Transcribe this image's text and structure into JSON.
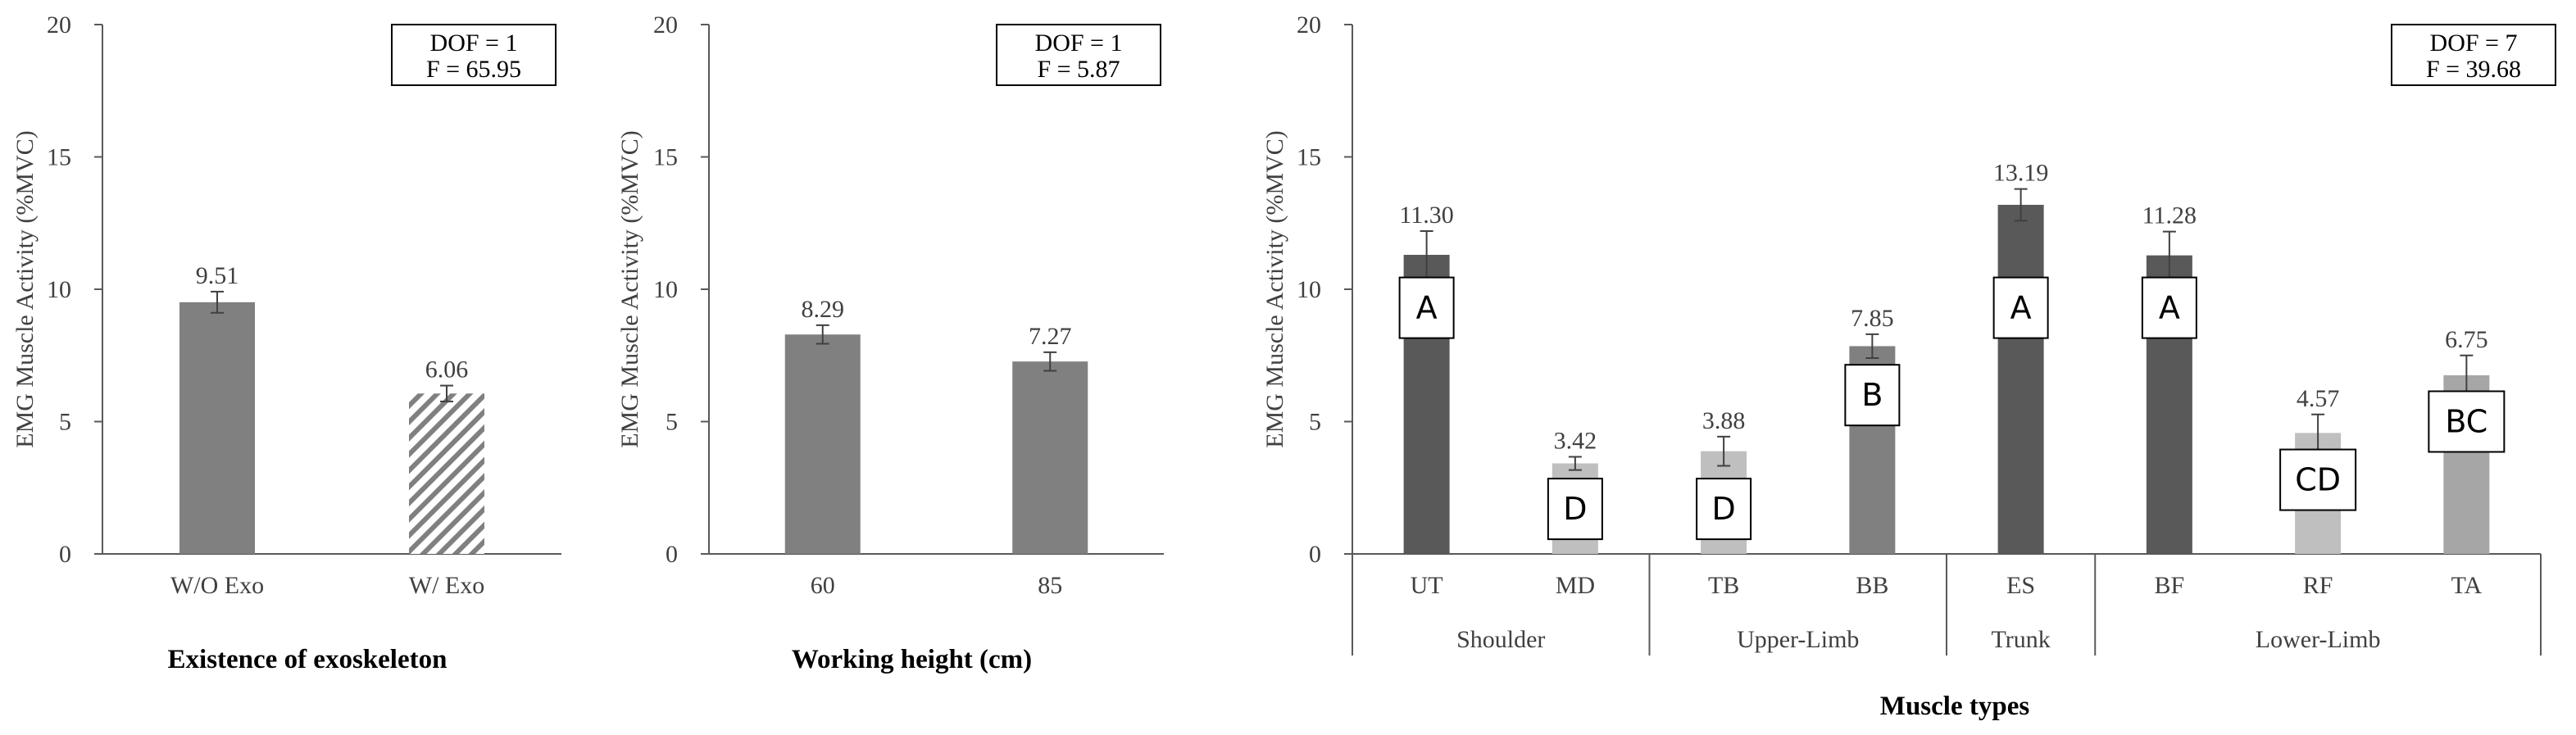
{
  "colors": {
    "axis": "#595959",
    "dark": "#595959",
    "medium": "#808080",
    "light": "#bfbfbf",
    "lighter": "#a6a6a6",
    "hatch": "#808080",
    "error": "#404040"
  },
  "chart_data": [
    {
      "type": "bar",
      "title": "",
      "xlabel": "Existence of exoskeleton",
      "ylabel": "EMG Muscle Activity  (%MVC)",
      "ylim": [
        0,
        20
      ],
      "yticks": [
        "0",
        "5",
        "10",
        "15",
        "20"
      ],
      "categories": [
        "W/O Exo",
        "W/ Exo"
      ],
      "values": [
        9.51,
        6.06
      ],
      "value_labels": [
        "9.51",
        "6.06"
      ],
      "errors": [
        0.4,
        0.3
      ],
      "fills": [
        "solid-medium",
        "hatch"
      ],
      "stat_box": [
        "DOF = 1",
        "F = 65.95"
      ]
    },
    {
      "type": "bar",
      "title": "",
      "xlabel": "Working height (cm)",
      "ylabel": "EMG Muscle Activity  (%MVC)",
      "ylim": [
        0,
        20
      ],
      "yticks": [
        "0",
        "5",
        "10",
        "15",
        "20"
      ],
      "categories": [
        "60",
        "85"
      ],
      "values": [
        8.29,
        7.27
      ],
      "value_labels": [
        "8.29",
        "7.27"
      ],
      "errors": [
        0.35,
        0.35
      ],
      "fills": [
        "solid-medium",
        "solid-medium"
      ],
      "stat_box": [
        "DOF = 1",
        "F = 5.87"
      ]
    },
    {
      "type": "bar",
      "title": "",
      "xlabel": "Muscle types",
      "ylabel": "EMG Muscle Activity  (%MVC)",
      "ylim": [
        0,
        20
      ],
      "yticks": [
        "0",
        "5",
        "10",
        "15",
        "20"
      ],
      "categories": [
        "UT",
        "MD",
        "TB",
        "BB",
        "ES",
        "BF",
        "RF",
        "TA"
      ],
      "values": [
        11.3,
        3.42,
        3.88,
        7.85,
        13.19,
        11.28,
        4.57,
        6.75
      ],
      "value_labels": [
        "11.30",
        "3.42",
        "3.88",
        "7.85",
        "13.19",
        "11.28",
        "4.57",
        "6.75"
      ],
      "errors": [
        0.9,
        0.25,
        0.55,
        0.45,
        0.6,
        0.9,
        0.7,
        0.75
      ],
      "fills": [
        "dark",
        "light",
        "light",
        "medium",
        "dark",
        "dark",
        "light",
        "lighter"
      ],
      "letters": [
        "A",
        "D",
        "D",
        "B",
        "A",
        "A",
        "CD",
        "BC"
      ],
      "letter_y": [
        9.3,
        1.7,
        1.7,
        6.0,
        9.3,
        9.3,
        2.8,
        5.0
      ],
      "groups": [
        {
          "label": "Shoulder",
          "start": 0,
          "end": 1
        },
        {
          "label": "Upper-Limb",
          "start": 2,
          "end": 3
        },
        {
          "label": "Trunk",
          "start": 4,
          "end": 4
        },
        {
          "label": "Lower-Limb",
          "start": 5,
          "end": 7
        }
      ],
      "stat_box": [
        "DOF = 7",
        "F = 39.68"
      ]
    }
  ]
}
